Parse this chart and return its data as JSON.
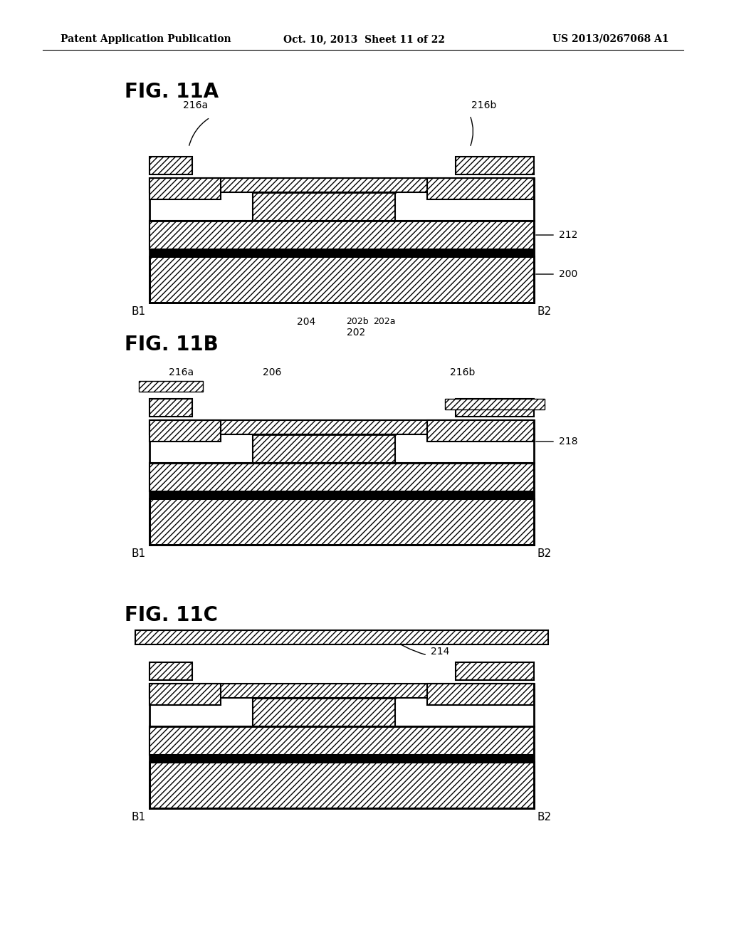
{
  "header_left": "Patent Application Publication",
  "header_mid": "Oct. 10, 2013  Sheet 11 of 22",
  "header_right": "US 2013/0267068 A1",
  "fig_labels": [
    "FIG. 11A",
    "FIG. 11B",
    "FIG. 11C"
  ],
  "background_color": "#ffffff",
  "line_color": "#000000",
  "hatch_color": "#000000",
  "hatch_pattern": "////",
  "hatch_pattern2": "xxxx"
}
